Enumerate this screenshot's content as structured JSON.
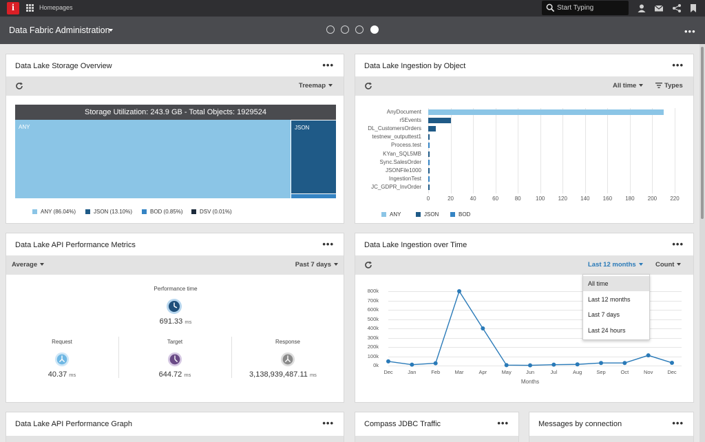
{
  "topbar": {
    "logo_letter": "i",
    "homepages_label": "Homepages",
    "search_placeholder": "Start Typing"
  },
  "header": {
    "title": "Data Fabric Administration",
    "page_dots": 4,
    "active_dot": 4
  },
  "storage_card": {
    "title": "Data Lake Storage Overview",
    "view_label": "Treemap",
    "treemap_header": "Storage Utilization: 243.9 GB - Total Objects: 1929524",
    "cells": [
      {
        "label": "ANY",
        "share": 86.04,
        "color": "#8bc5e6"
      },
      {
        "label": "JSON",
        "share": 13.1,
        "color": "#1f5a87"
      },
      {
        "label": "BOD",
        "share": 0.85,
        "color": "#3584c4"
      },
      {
        "label": "DSV",
        "share": 0.01,
        "color": "#1d2b3c"
      }
    ],
    "legend": [
      "ANY (86.04%)",
      "JSON (13.10%)",
      "BOD (0.85%)",
      "DSV (0.01%)"
    ]
  },
  "ingestion_object_card": {
    "title": "Data Lake Ingestion by Object",
    "time_filter": "All time",
    "types_label": "Types",
    "legend": [
      "ANY",
      "JSON",
      "BOD"
    ]
  },
  "api_metrics_card": {
    "title": "Data Lake API Performance Metrics",
    "aggregate_label": "Average",
    "range_label": "Past 7 days",
    "performance": {
      "label": "Performance time",
      "value": "691.33",
      "unit": "ms"
    },
    "request": {
      "label": "Request",
      "value": "40.37",
      "unit": "ms"
    },
    "target": {
      "label": "Target",
      "value": "644.72",
      "unit": "ms"
    },
    "response": {
      "label": "Response",
      "value": "3,138,939,487.11",
      "unit": "ms"
    }
  },
  "ingestion_time_card": {
    "title": "Data Lake Ingestion over Time",
    "range_label": "Last 12 months",
    "measure_label": "Count",
    "dropdown_options": [
      "All time",
      "Last 12 months",
      "Last 7 days",
      "Last 24 hours"
    ],
    "dropdown_highlighted": "All time"
  },
  "bottom_cards": {
    "api_graph_title": "Data Lake API Performance Graph",
    "jdbc_title": "Compass JDBC Traffic",
    "messages_title": "Messages by connection"
  },
  "chart_data": [
    {
      "type": "bar",
      "orientation": "horizontal",
      "categories": [
        "AnyDocument",
        "r5Events",
        "DL_CustomersOrders",
        "testnew_outputtest1",
        "Process.test",
        "KYan_SQL5MB",
        "Sync.SalesOrder",
        "JSONFile1000",
        "IngestionTest",
        "JC_GDPR_InvOrder"
      ],
      "series": [
        {
          "name": "ANY",
          "color": "#8bc5e6",
          "values": [
            210,
            0,
            0,
            0,
            0,
            0,
            0,
            0,
            0,
            0
          ]
        },
        {
          "name": "JSON",
          "color": "#1f5a87",
          "values": [
            0,
            20,
            7,
            1.5,
            0,
            1,
            0,
            1,
            0,
            0.5
          ]
        },
        {
          "name": "BOD",
          "color": "#3584c4",
          "values": [
            0,
            0,
            0,
            0,
            1.5,
            0,
            1,
            0,
            1,
            0
          ]
        }
      ],
      "xticks": [
        "0",
        "20",
        "40",
        "60",
        "80",
        "100",
        "120",
        "140",
        "160",
        "180",
        "200",
        "220"
      ],
      "xlim": [
        0,
        220
      ]
    },
    {
      "type": "line",
      "x": [
        "Dec",
        "Jan",
        "Feb",
        "Mar",
        "Apr",
        "May",
        "Jun",
        "Jul",
        "Aug",
        "Sep",
        "Oct",
        "Nov",
        "Dec"
      ],
      "series": [
        {
          "name": "Count",
          "color": "#2a7ab8",
          "values": [
            45000,
            10000,
            25000,
            800000,
            400000,
            5000,
            3000,
            10000,
            13000,
            28000,
            28000,
            110000,
            30000
          ]
        }
      ],
      "yticks": [
        "0k",
        "100k",
        "200k",
        "300k",
        "400k",
        "500k",
        "600k",
        "700k",
        "800k"
      ],
      "ylim": [
        0,
        800000
      ],
      "xlabel": "Months"
    }
  ]
}
